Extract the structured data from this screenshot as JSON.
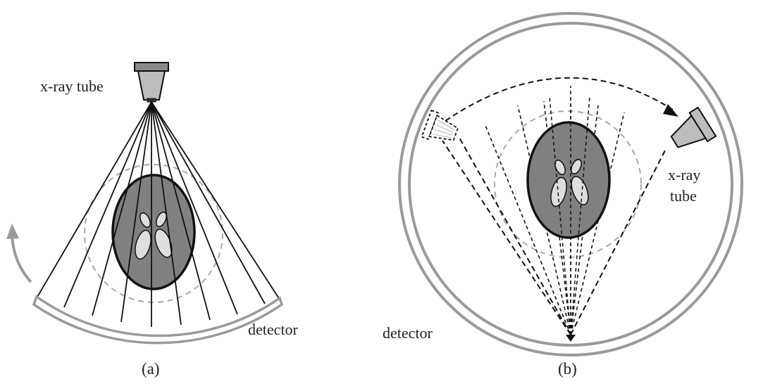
{
  "panel_a": {
    "tube_label": "x-ray tube",
    "detector_label": "detector",
    "caption": "(a)"
  },
  "panel_b": {
    "tube_label_line1": "x-ray",
    "tube_label_line2": "tube",
    "detector_label": "detector",
    "caption": "(b)"
  },
  "colors": {
    "ink": "#111111",
    "body_fill": "#808080",
    "organ_fill": "#dedede",
    "ring_gray": "#9a9a9a",
    "dashed_circle": "#a8a8a8",
    "tube_fill": "#bdbdbd"
  }
}
